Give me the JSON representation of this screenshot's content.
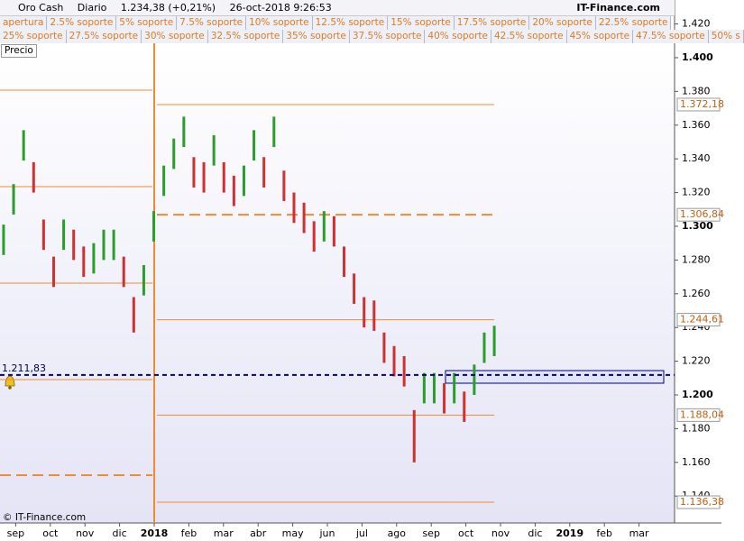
{
  "header": {
    "instrument": "Oro Cash",
    "period": "Diario",
    "last": "1.234,38 (+0,21%)",
    "datetime": "26-oct-2018 9:26:53",
    "site": "IT-Finance.com"
  },
  "indicators": {
    "row1": [
      "apertura",
      "2.5% soporte",
      "5% soporte",
      "7.5% soporte",
      "10% soporte",
      "12.5% soporte",
      "15% soporte",
      "17.5% soporte",
      "20% soporte",
      "22.5% soporte"
    ],
    "row2": [
      "25% soporte",
      "27.5% soporte",
      "30% soporte",
      "32.5% soporte",
      "35% soporte",
      "37.5% soporte",
      "40% soporte",
      "42.5% soporte",
      "45% soporte",
      "47.5% soporte",
      "50% s"
    ],
    "price_label": "Precio"
  },
  "footer": "© IT-Finance.com",
  "chart_data": {
    "type": "ohlc",
    "x_labels": [
      "sep",
      "oct",
      "nov",
      "dic",
      "2018",
      "feb",
      "mar",
      "abr",
      "may",
      "jun",
      "jul",
      "ago",
      "sep",
      "oct",
      "nov",
      "dic",
      "2019",
      "feb",
      "mar"
    ],
    "high": [
      1.301,
      1.325,
      1.357,
      1.338,
      1.304,
      1.282,
      1.304,
      1.298,
      1.288,
      1.29,
      1.298,
      1.298,
      1.282,
      1.258,
      1.277,
      1.309,
      1.336,
      1.352,
      1.365,
      1.341,
      1.338,
      1.354,
      1.338,
      1.33,
      1.336,
      1.357,
      1.341,
      1.365,
      1.333,
      1.32,
      1.314,
      1.303,
      1.309,
      1.306,
      1.288,
      1.272,
      1.258,
      1.256,
      1.237,
      1.229,
      1.223,
      1.191,
      1.213,
      1.213,
      1.207,
      1.213,
      1.202,
      1.218,
      1.237,
      1.241
    ],
    "low": [
      1.283,
      1.307,
      1.339,
      1.32,
      1.286,
      1.264,
      1.286,
      1.28,
      1.27,
      1.272,
      1.28,
      1.28,
      1.264,
      1.237,
      1.259,
      1.291,
      1.318,
      1.334,
      1.347,
      1.323,
      1.32,
      1.336,
      1.32,
      1.312,
      1.318,
      1.339,
      1.323,
      1.347,
      1.315,
      1.302,
      1.296,
      1.285,
      1.291,
      1.288,
      1.27,
      1.254,
      1.24,
      1.238,
      1.219,
      1.211,
      1.205,
      1.16,
      1.195,
      1.195,
      1.189,
      1.195,
      1.184,
      1.2,
      1.219,
      1.223
    ],
    "up_color": "#2a9d2a",
    "down_color": "#d03030",
    "level_color": "#f08c30",
    "ylim": [
      1.123,
      1.4235
    ],
    "yticks": [
      {
        "value": 1.42,
        "label": "1.420"
      },
      {
        "value": 1.4,
        "label": "1.400"
      },
      {
        "value": 1.38,
        "label": "1.380"
      },
      {
        "value": 1.36,
        "label": "1.360"
      },
      {
        "value": 1.34,
        "label": "1.340"
      },
      {
        "value": 1.32,
        "label": "1.320"
      },
      {
        "value": 1.3,
        "label": "1.300"
      },
      {
        "value": 1.28,
        "label": "1.280"
      },
      {
        "value": 1.26,
        "label": "1.260"
      },
      {
        "value": 1.24,
        "label": "1.240"
      },
      {
        "value": 1.22,
        "label": "1.220"
      },
      {
        "value": 1.2,
        "label": "1.200"
      },
      {
        "value": 1.18,
        "label": "1.180"
      },
      {
        "value": 1.16,
        "label": "1.160"
      },
      {
        "value": 1.14,
        "label": "1.140"
      }
    ],
    "levels": [
      {
        "value": 1.37218,
        "label": "1.372,18",
        "style": "solid"
      },
      {
        "value": 1.30684,
        "label": "1.306,84",
        "style": "dashed"
      },
      {
        "value": 1.24461,
        "label": "1.244,61",
        "style": "solid"
      },
      {
        "value": 1.18804,
        "label": "1.188,04",
        "style": "solid"
      },
      {
        "value": 1.13638,
        "label": "1.136,38",
        "style": "solid"
      }
    ],
    "levels_prev": [
      {
        "value": 1.3807,
        "style": "solid"
      },
      {
        "value": 1.3235,
        "style": "solid"
      },
      {
        "value": 1.2663,
        "style": "solid"
      },
      {
        "value": 1.2091,
        "style": "solid"
      },
      {
        "value": 1.1524,
        "style": "dashed"
      }
    ],
    "alert": {
      "value": 1.21183,
      "label": "1.211,83",
      "color": "#000080"
    }
  }
}
